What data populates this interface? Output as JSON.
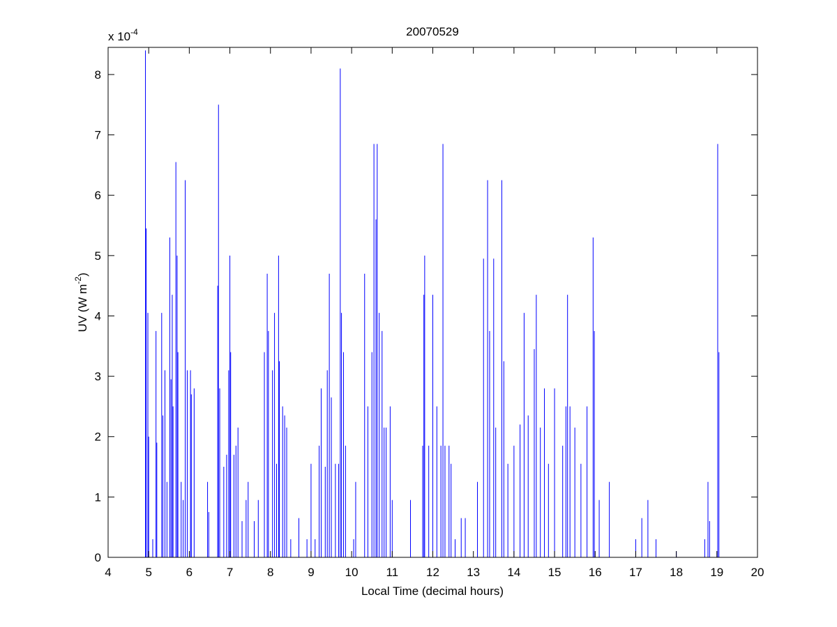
{
  "chart_data": {
    "type": "spike",
    "title": "20070529",
    "xlabel": "Local Time (decimal hours)",
    "ylabel": {
      "text": "UV (W m",
      "sup": "-2",
      "tail": ")"
    },
    "scale": {
      "text": "x 10",
      "sup": "-4"
    },
    "color": "#0000ff",
    "xlim": [
      4,
      20
    ],
    "xticks": [
      4,
      5,
      6,
      7,
      8,
      9,
      10,
      11,
      12,
      13,
      14,
      15,
      16,
      17,
      18,
      19,
      20
    ],
    "ylim": [
      0,
      8.45
    ],
    "yticks": [
      0,
      1,
      2,
      3,
      4,
      5,
      6,
      7,
      8
    ],
    "x": [
      4.92,
      4.94,
      4.98,
      5.0,
      5.1,
      5.18,
      5.2,
      5.32,
      5.35,
      5.4,
      5.45,
      5.52,
      5.55,
      5.58,
      5.6,
      5.67,
      5.7,
      5.72,
      5.8,
      5.85,
      5.9,
      5.95,
      6.03,
      6.05,
      6.12,
      6.45,
      6.48,
      6.7,
      6.72,
      6.75,
      6.85,
      6.92,
      6.97,
      7.0,
      7.02,
      7.1,
      7.15,
      7.2,
      7.3,
      7.4,
      7.45,
      7.6,
      7.7,
      7.85,
      7.92,
      7.95,
      8.05,
      8.1,
      8.15,
      8.2,
      8.22,
      8.3,
      8.35,
      8.4,
      8.5,
      8.7,
      8.9,
      9.0,
      9.1,
      9.2,
      9.25,
      9.35,
      9.4,
      9.45,
      9.5,
      9.6,
      9.68,
      9.72,
      9.75,
      9.8,
      9.85,
      10.05,
      10.1,
      10.32,
      10.4,
      10.5,
      10.55,
      10.6,
      10.63,
      10.68,
      10.75,
      10.8,
      10.85,
      10.95,
      11.0,
      11.45,
      11.75,
      11.78,
      11.8,
      11.9,
      12.0,
      12.1,
      12.2,
      12.25,
      12.3,
      12.4,
      12.45,
      12.55,
      12.7,
      12.8,
      13.1,
      13.25,
      13.35,
      13.4,
      13.5,
      13.55,
      13.7,
      13.75,
      13.85,
      14.0,
      14.15,
      14.25,
      14.35,
      14.5,
      14.55,
      14.65,
      14.75,
      14.85,
      15.0,
      15.2,
      15.28,
      15.32,
      15.38,
      15.5,
      15.65,
      15.8,
      15.95,
      15.98,
      16.1,
      16.35,
      17.0,
      17.15,
      17.3,
      17.5,
      18.0,
      18.7,
      18.78,
      18.82,
      19.02,
      19.05
    ],
    "values": [
      8.4,
      5.45,
      4.05,
      2.0,
      0.3,
      3.75,
      1.9,
      4.05,
      2.35,
      3.1,
      1.25,
      5.3,
      2.95,
      4.35,
      2.5,
      6.55,
      5.0,
      3.4,
      1.25,
      0.95,
      6.25,
      3.1,
      3.1,
      2.7,
      2.8,
      1.25,
      0.75,
      4.5,
      7.5,
      2.8,
      1.5,
      1.7,
      3.1,
      5.0,
      3.4,
      1.7,
      1.85,
      2.15,
      0.6,
      0.95,
      1.25,
      0.6,
      0.95,
      3.4,
      4.7,
      3.75,
      3.1,
      4.05,
      1.55,
      5.0,
      3.25,
      2.5,
      2.35,
      2.15,
      0.3,
      0.65,
      0.3,
      1.55,
      0.3,
      1.85,
      2.8,
      1.5,
      3.1,
      4.7,
      2.65,
      1.55,
      1.55,
      8.1,
      4.05,
      3.4,
      1.85,
      0.3,
      1.25,
      4.7,
      2.5,
      3.4,
      6.85,
      5.6,
      6.85,
      4.05,
      3.75,
      2.15,
      2.15,
      2.5,
      0.95,
      0.95,
      1.85,
      4.35,
      5.0,
      1.85,
      4.35,
      2.5,
      1.85,
      6.85,
      1.85,
      1.85,
      1.55,
      0.3,
      0.65,
      0.65,
      1.25,
      4.95,
      6.25,
      3.75,
      4.95,
      2.15,
      6.25,
      3.25,
      1.55,
      1.85,
      2.2,
      4.05,
      2.35,
      3.45,
      4.35,
      2.15,
      2.8,
      1.55,
      2.8,
      1.85,
      2.5,
      4.35,
      2.5,
      2.15,
      1.55,
      2.5,
      5.3,
      3.75,
      0.95,
      1.25,
      0.3,
      0.65,
      0.95,
      0.3,
      0.1,
      0.3,
      1.25,
      0.6,
      6.85,
      3.4
    ]
  }
}
